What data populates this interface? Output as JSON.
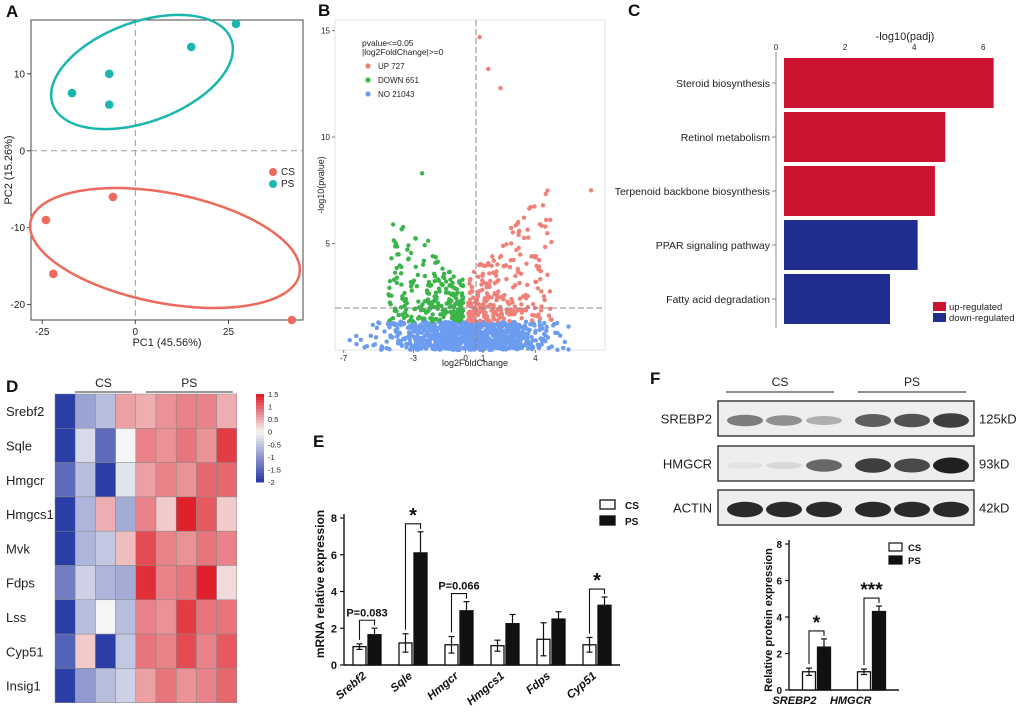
{
  "panels": {
    "a": "A",
    "b": "B",
    "c": "C",
    "d": "D",
    "e": "E",
    "f": "F"
  },
  "chart_data": [
    {
      "id": "pca",
      "type": "scatter",
      "title": "",
      "xlabel": "PC1 (45.56%)",
      "ylabel": "PC2 (15.26%)",
      "xlim": [
        -28,
        45
      ],
      "ylim": [
        -22,
        17
      ],
      "xticks": [
        -25,
        0,
        25
      ],
      "xtick_labels": [
        "-25",
        "0",
        "25"
      ],
      "yticks": [
        -20,
        -10,
        0,
        10
      ],
      "ytick_labels": [
        "-20",
        "-10",
        "0",
        "10"
      ],
      "grid": false,
      "legend": [
        "CS",
        "PS"
      ],
      "legend_position": "right",
      "series": [
        {
          "name": "CS",
          "color": "#ee6a5d",
          "points": [
            [
              -24,
              -9
            ],
            [
              -6,
              -6
            ],
            [
              -22,
              -16
            ],
            [
              42,
              -22
            ]
          ]
        },
        {
          "name": "PS",
          "color": "#1bb6ae",
          "points": [
            [
              -17,
              7.5
            ],
            [
              -7,
              10
            ],
            [
              -7,
              6
            ],
            [
              15,
              13.5
            ],
            [
              27,
              16.5
            ]
          ]
        }
      ]
    },
    {
      "id": "volcano",
      "type": "scatter",
      "title": "",
      "xlabel": "log2FoldChange",
      "ylabel": "-log10(pvalue)",
      "xlim": [
        -7.5,
        8
      ],
      "ylim": [
        0,
        15.5
      ],
      "xticks": [
        -7,
        -3,
        0,
        1,
        4
      ],
      "xtick_labels": [
        "-7",
        "-3",
        "0",
        "1",
        "4"
      ],
      "yticks": [
        5,
        10,
        15
      ],
      "ytick_labels": [
        "5",
        "10",
        "15"
      ],
      "threshold_pvalue_line": 1.3,
      "legend_title": [
        "pvalue<=0.05",
        "|log2FoldChange|>=0"
      ],
      "legend_position": "top-left",
      "series": [
        {
          "name": "UP 727",
          "label": "UP 727",
          "color": "#f08078"
        },
        {
          "name": "DOWN 651",
          "label": "DOWN 651",
          "color": "#3bb54a"
        },
        {
          "name": "NO 21043",
          "label": "NO 21043",
          "color": "#6b9cf0"
        }
      ],
      "notable_points": [
        [
          0.8,
          14.7
        ],
        [
          1.3,
          13.2
        ],
        [
          2.0,
          12.3
        ],
        [
          7.2,
          7.5
        ],
        [
          -2.5,
          8.3
        ]
      ]
    },
    {
      "id": "kegg",
      "type": "bar",
      "orientation": "horizontal",
      "title": "-log10(padj)",
      "xticks": [
        0,
        2,
        4,
        6
      ],
      "xtick_labels": [
        "0",
        "2",
        "4",
        "6"
      ],
      "xlim": [
        0,
        6.6
      ],
      "categories": [
        "Steroid biosynthesis",
        "Retinol metabolism",
        "Terpenoid backbone biosynthesis",
        "PPAR signaling pathway",
        "Fatty acid degradation"
      ],
      "values": [
        6.3,
        4.9,
        4.6,
        4.1,
        3.3
      ],
      "colors": [
        "#cc1430",
        "#cc1430",
        "#cc1430",
        "#1f2d8f",
        "#1f2d8f"
      ],
      "legend": [
        {
          "label": "up-regulated",
          "color": "#cc1430"
        },
        {
          "label": "down-regulated",
          "color": "#1f2d8f"
        }
      ],
      "legend_position": "bottom-right"
    },
    {
      "id": "heatmap",
      "type": "heatmap",
      "column_groups": [
        {
          "label": "CS",
          "count": 4
        },
        {
          "label": "PS",
          "count": 5
        }
      ],
      "rows": [
        "Srebf2",
        "Sqle",
        "Hmgcr",
        "Hmgcs1",
        "Mvk",
        "Fdps",
        "Lss",
        "Cyp51",
        "Insig1"
      ],
      "values": [
        [
          -2.0,
          -0.9,
          -0.6,
          0.6,
          0.5,
          0.7,
          0.8,
          0.8,
          0.5
        ],
        [
          -2.0,
          -0.3,
          -1.5,
          0.0,
          0.8,
          0.7,
          0.9,
          0.7,
          1.3
        ],
        [
          -1.5,
          -0.6,
          -2.0,
          -0.2,
          0.6,
          0.8,
          0.7,
          1.0,
          1.0
        ],
        [
          -2.0,
          -0.7,
          0.5,
          -0.8,
          0.8,
          0.3,
          1.5,
          1.1,
          0.3
        ],
        [
          -2.0,
          -0.7,
          -0.5,
          0.4,
          1.2,
          0.8,
          0.7,
          0.9,
          0.8
        ],
        [
          -1.3,
          -0.4,
          -0.7,
          -0.8,
          1.4,
          0.8,
          0.9,
          1.5,
          0.2
        ],
        [
          -2.0,
          -0.6,
          0.0,
          -0.6,
          0.8,
          0.7,
          1.3,
          0.9,
          0.9
        ],
        [
          -1.6,
          0.3,
          -2.0,
          -0.5,
          0.9,
          0.8,
          1.2,
          0.8,
          1.1
        ],
        [
          -2.0,
          -1.0,
          -0.6,
          -0.4,
          0.6,
          0.9,
          0.7,
          0.8,
          1.0
        ]
      ],
      "colorbar_ticks": [
        "1.5",
        "1",
        "0.5",
        "0",
        "-0.5",
        "-1",
        "-1.5",
        "-2"
      ],
      "color_low": "#2b3ea8",
      "color_mid": "#f5f5f5",
      "color_high": "#e0202a"
    },
    {
      "id": "qpcr",
      "type": "bar",
      "ylabel": "mRNA relative expression",
      "ylim": [
        0,
        8
      ],
      "yticks": [
        0,
        2,
        4,
        6,
        8
      ],
      "ytick_labels": [
        "0",
        "2",
        "4",
        "6",
        "8"
      ],
      "categories": [
        "Srebf2",
        "Sqle",
        "Hmgcr",
        "Hmgcs1",
        "Fdps",
        "Cyp51"
      ],
      "series": [
        {
          "name": "CS",
          "values": [
            1.0,
            1.2,
            1.1,
            1.05,
            1.4,
            1.1
          ],
          "errors": [
            0.15,
            0.5,
            0.45,
            0.3,
            0.9,
            0.4
          ]
        },
        {
          "name": "PS",
          "values": [
            1.65,
            6.1,
            2.95,
            2.25,
            2.5,
            3.25
          ],
          "errors": [
            0.35,
            1.15,
            0.5,
            0.5,
            0.4,
            0.45
          ]
        }
      ],
      "legend_position": "top-right",
      "annotations": [
        {
          "category": "Srebf2",
          "text": "P=0.083"
        },
        {
          "category": "Sqle",
          "text": "*"
        },
        {
          "category": "Hmgcr",
          "text": "P=0.066"
        },
        {
          "category": "Cyp51",
          "text": "*"
        }
      ]
    },
    {
      "id": "western",
      "type": "table",
      "group_labels": [
        "CS",
        "PS"
      ],
      "rows": [
        {
          "protein": "SREBP2",
          "size": "125kD",
          "intensity": [
            0.55,
            0.45,
            0.3,
            0.7,
            0.75,
            0.85
          ]
        },
        {
          "protein": "HMGCR",
          "size": "93kD",
          "intensity": [
            0.05,
            0.1,
            0.65,
            0.85,
            0.8,
            1.0
          ]
        },
        {
          "protein": "ACTIN",
          "size": "42kD",
          "intensity": [
            0.95,
            0.95,
            0.95,
            0.95,
            0.95,
            0.95
          ]
        }
      ]
    },
    {
      "id": "protein",
      "type": "bar",
      "ylabel": "Relative protein expression",
      "ylim": [
        0,
        8
      ],
      "yticks": [
        0,
        2,
        4,
        6,
        8
      ],
      "ytick_labels": [
        "0",
        "2",
        "4",
        "6",
        "8"
      ],
      "categories": [
        "SREBP2",
        "HMGCR"
      ],
      "series": [
        {
          "name": "CS",
          "values": [
            1.0,
            1.0
          ],
          "errors": [
            0.2,
            0.15
          ]
        },
        {
          "name": "PS",
          "values": [
            2.35,
            4.3
          ],
          "errors": [
            0.45,
            0.3
          ]
        }
      ],
      "legend_position": "top-right",
      "annotations": [
        {
          "category": "SREBP2",
          "text": "*"
        },
        {
          "category": "HMGCR",
          "text": "***"
        }
      ]
    }
  ]
}
